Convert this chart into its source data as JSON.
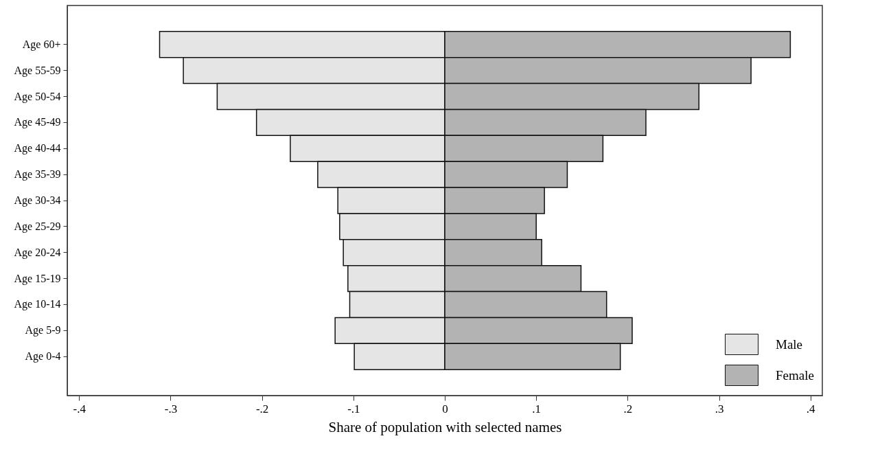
{
  "chart_data": {
    "type": "bar",
    "orientation": "horizontal",
    "xlabel": "Share of population with selected names",
    "categories": [
      "Age 60+",
      "Age 55-59",
      "Age 50-54",
      "Age 45-49",
      "Age 40-44",
      "Age 35-39",
      "Age 30-34",
      "Age 25-29",
      "Age 20-24",
      "Age 15-19",
      "Age 10-14",
      "Age 5-9",
      "Age 0-4"
    ],
    "series": [
      {
        "name": "Male",
        "color": "#e5e5e5",
        "values": [
          -0.312,
          -0.286,
          -0.249,
          -0.206,
          -0.169,
          -0.139,
          -0.117,
          -0.115,
          -0.111,
          -0.106,
          -0.104,
          -0.12,
          -0.099
        ]
      },
      {
        "name": "Female",
        "color": "#b3b3b3",
        "values": [
          0.378,
          0.335,
          0.278,
          0.22,
          0.173,
          0.134,
          0.109,
          0.1,
          0.106,
          0.149,
          0.177,
          0.205,
          0.192
        ]
      }
    ],
    "xlim": [
      -0.413,
      0.413
    ],
    "xticks": [
      {
        "value": -0.4,
        "label": "-.4"
      },
      {
        "value": -0.3,
        "label": "-.3"
      },
      {
        "value": -0.2,
        "label": "-.2"
      },
      {
        "value": -0.1,
        "label": "-.1"
      },
      0,
      {
        "value": 0.1,
        "label": ".1"
      },
      {
        "value": 0.2,
        "label": ".2"
      },
      {
        "value": 0.3,
        "label": ".3"
      },
      {
        "value": 0.4,
        "label": ".4"
      }
    ],
    "stacked": true,
    "grid": false,
    "legend": "bottom right"
  }
}
